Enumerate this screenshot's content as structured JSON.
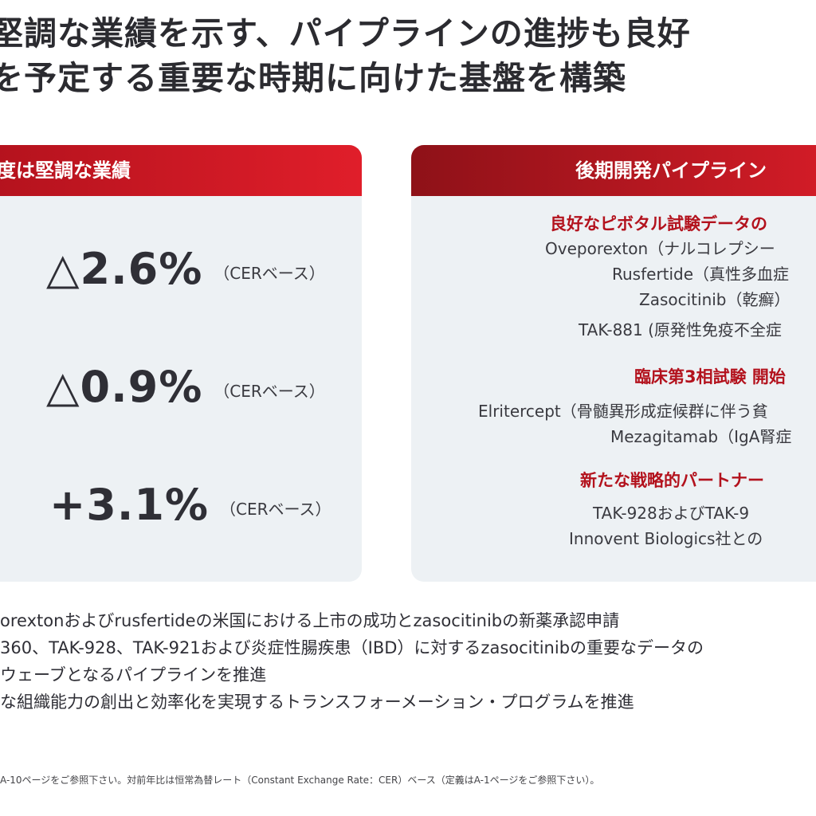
{
  "title": {
    "line1": "堅調な業績を示す、パイプラインの進捗も良好",
    "line2": "を予定する重要な時期に向けた基盤を構築"
  },
  "left_panel": {
    "header": "度は堅調な業績",
    "metrics": [
      {
        "value": "△2.6%",
        "suffix": "（CERベース）"
      },
      {
        "value": "△0.9%",
        "suffix": "（CERベース）"
      },
      {
        "value": "+3.1%",
        "suffix": "（CERベース）"
      }
    ]
  },
  "right_panel": {
    "header": "後期開発パイプライン",
    "sections": [
      {
        "title": "良好なピボタル試験データの",
        "items": [
          "Oveporexton（ナルコレプシー",
          "Rusfertide（真性多血症",
          "Zasocitinib（乾癬）",
          "TAK-881 (原発性免疫不全症"
        ]
      },
      {
        "title": "臨床第3相試験 開始",
        "items": [
          "Elritercept（骨髄異形成症候群に伴う貧",
          "Mezagitamab（IgA腎症"
        ]
      },
      {
        "title": "新たな戦略的パートナー",
        "items": [
          "TAK-928およびTAK-9",
          "Innovent Biologics社との"
        ]
      }
    ]
  },
  "bullets": [
    "orextonおよびrusfertideの米国における上市の成功とzasocitinibの新薬承認申請",
    "360、TAK-928、TAK-921および炎症性腸疾患（IBD）に対するzasocitinibの重要なデータの",
    "ウェーブとなるパイプラインを推進",
    "な組織能力の創出と効率化を実現するトランスフォーメーション・プログラムを推進"
  ],
  "footnote": "A-10ページをご参照下さい。対前年比は恒常為替レート（Constant Exchange Rate：CER）ベース（定義はA-1ページをご参照下さい）。"
}
